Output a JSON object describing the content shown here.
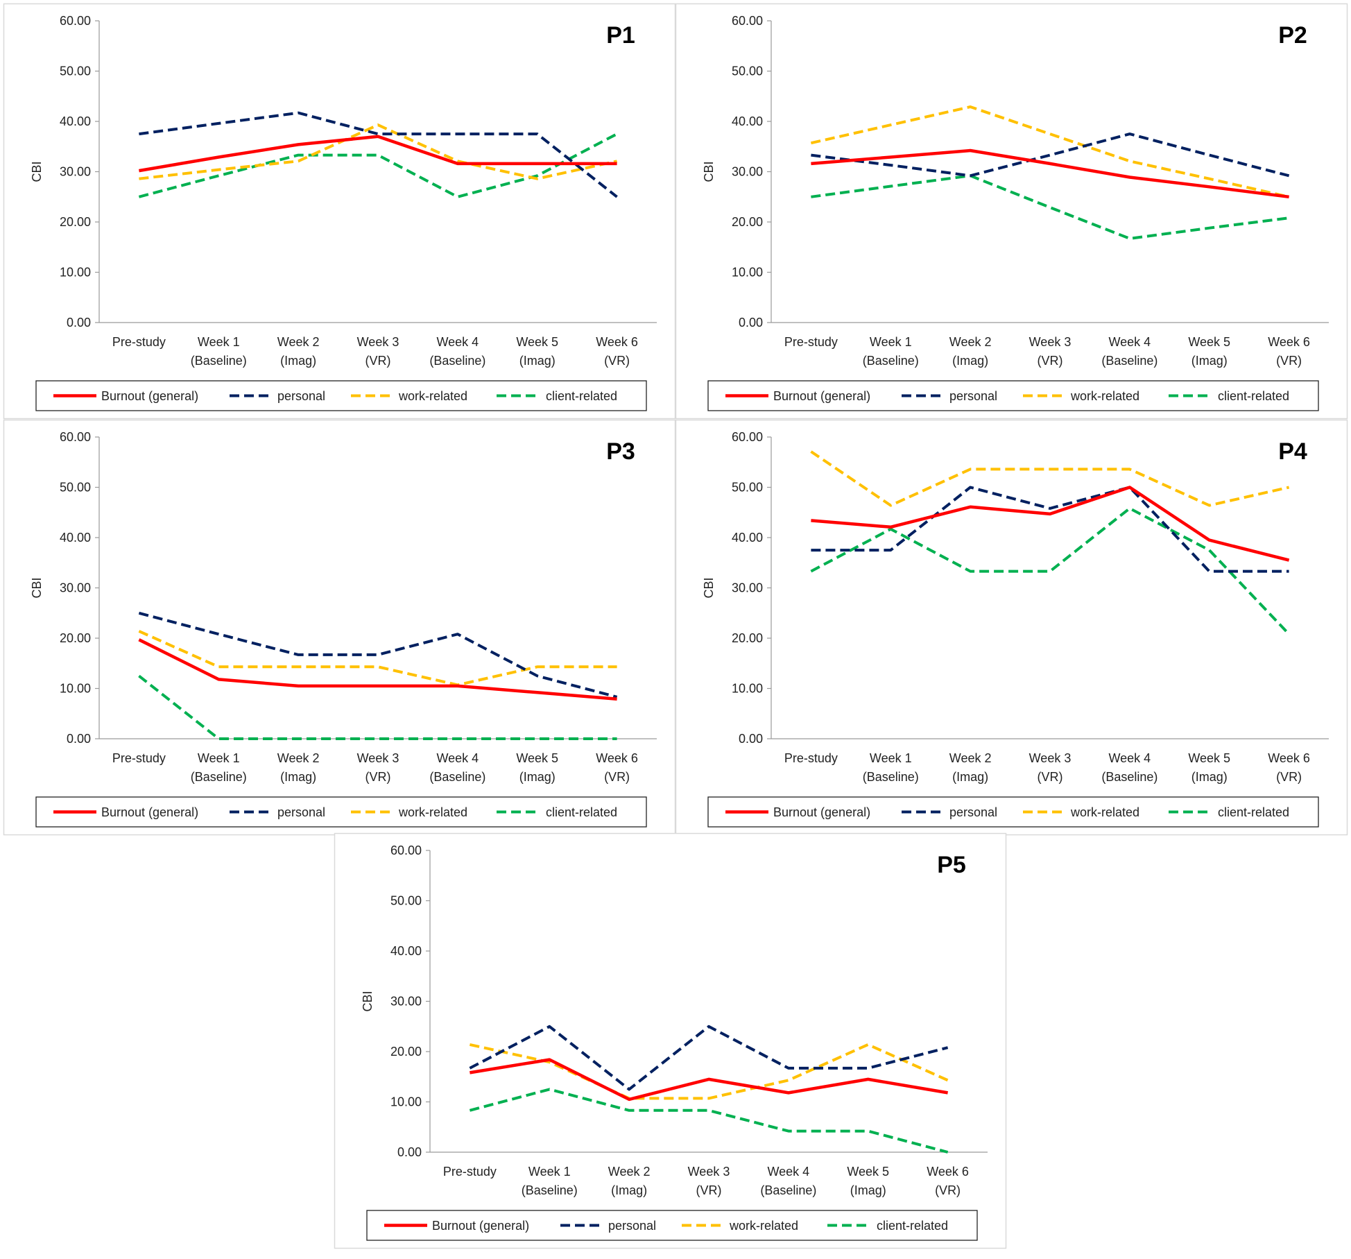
{
  "chart_data": [
    {
      "type": "line",
      "title": "P1",
      "y_label": "CBI",
      "categories": [
        "Pre-study",
        "Week 1 (Baseline)",
        "Week 2 (Imag)",
        "Week 3 (VR)",
        "Week 4 (Baseline)",
        "Week 5 (Imag)",
        "Week 6 (VR)"
      ],
      "ylim": [
        0,
        60
      ],
      "yticks": [
        {
          "value": 0,
          "label": "0.00"
        },
        {
          "value": 10,
          "label": "10.00"
        },
        {
          "value": 20,
          "label": "20.00"
        },
        {
          "value": 30,
          "label": "30.00"
        },
        {
          "value": 40,
          "label": "40.00"
        },
        {
          "value": 50,
          "label": "50.00"
        },
        {
          "value": 60,
          "label": "60.00"
        }
      ],
      "series": [
        {
          "name": "Burnout (general)",
          "color": "#ff0000",
          "values": [
            30.2,
            32.9,
            35.4,
            37.0,
            31.6,
            31.6,
            31.6
          ]
        },
        {
          "name": "personal",
          "color": "#002060",
          "dashed": true,
          "values": [
            37.5,
            39.6,
            41.7,
            37.5,
            37.5,
            37.5,
            25.0
          ]
        },
        {
          "name": "work-related",
          "color": "#ffc000",
          "dashed": true,
          "values": [
            28.6,
            30.4,
            32.1,
            39.3,
            32.1,
            28.6,
            32.1
          ]
        },
        {
          "name": "client-related",
          "color": "#00b050",
          "dashed": true,
          "values": [
            25.0,
            29.2,
            33.3,
            33.3,
            25.0,
            29.2,
            37.5
          ]
        }
      ]
    },
    {
      "type": "line",
      "title": "P2",
      "y_label": "CBI",
      "categories": [
        "Pre-study",
        "Week 1 (Baseline)",
        "Week 2 (Imag)",
        "Week 3 (VR)",
        "Week 4 (Baseline)",
        "Week 5 (Imag)",
        "Week 6 (VR)"
      ],
      "ylim": [
        0,
        60
      ],
      "yticks": [
        {
          "value": 0,
          "label": "0.00"
        },
        {
          "value": 10,
          "label": "10.00"
        },
        {
          "value": 20,
          "label": "20.00"
        },
        {
          "value": 30,
          "label": "30.00"
        },
        {
          "value": 40,
          "label": "40.00"
        },
        {
          "value": 50,
          "label": "50.00"
        },
        {
          "value": 60,
          "label": "60.00"
        }
      ],
      "series": [
        {
          "name": "Burnout (general)",
          "color": "#ff0000",
          "values": [
            31.6,
            32.9,
            34.2,
            31.6,
            28.9,
            27.0,
            25.0
          ]
        },
        {
          "name": "personal",
          "color": "#002060",
          "dashed": true,
          "values": [
            33.3,
            31.3,
            29.2,
            33.3,
            37.5,
            33.3,
            29.2
          ]
        },
        {
          "name": "work-related",
          "color": "#ffc000",
          "dashed": true,
          "values": [
            35.7,
            39.3,
            42.9,
            37.5,
            32.1,
            28.6,
            25.0
          ]
        },
        {
          "name": "client-related",
          "color": "#00b050",
          "dashed": true,
          "values": [
            25.0,
            27.1,
            29.2,
            22.9,
            16.7,
            18.8,
            20.8
          ]
        }
      ]
    },
    {
      "type": "line",
      "title": "P3",
      "y_label": "CBI",
      "categories": [
        "Pre-study",
        "Week 1 (Baseline)",
        "Week 2 (Imag)",
        "Week 3 (VR)",
        "Week 4 (Baseline)",
        "Week 5 (Imag)",
        "Week 6 (VR)"
      ],
      "ylim": [
        0,
        60
      ],
      "yticks": [
        {
          "value": 0,
          "label": "0.00"
        },
        {
          "value": 10,
          "label": "10.00"
        },
        {
          "value": 20,
          "label": "20.00"
        },
        {
          "value": 30,
          "label": "30.00"
        },
        {
          "value": 40,
          "label": "40.00"
        },
        {
          "value": 50,
          "label": "50.00"
        },
        {
          "value": 60,
          "label": "60.00"
        }
      ],
      "series": [
        {
          "name": "Burnout (general)",
          "color": "#ff0000",
          "values": [
            19.7,
            11.8,
            10.5,
            10.5,
            10.5,
            9.2,
            7.9
          ]
        },
        {
          "name": "personal",
          "color": "#002060",
          "dashed": true,
          "values": [
            25.0,
            20.8,
            16.7,
            16.7,
            20.8,
            12.5,
            8.3
          ]
        },
        {
          "name": "work-related",
          "color": "#ffc000",
          "dashed": true,
          "values": [
            21.4,
            14.3,
            14.3,
            14.3,
            10.7,
            14.3,
            14.3
          ]
        },
        {
          "name": "client-related",
          "color": "#00b050",
          "dashed": true,
          "values": [
            12.5,
            0,
            0,
            0,
            0,
            0,
            0
          ]
        }
      ]
    },
    {
      "type": "line",
      "title": "P4",
      "y_label": "CBI",
      "categories": [
        "Pre-study",
        "Week 1 (Baseline)",
        "Week 2 (Imag)",
        "Week 3 (VR)",
        "Week 4 (Baseline)",
        "Week 5 (Imag)",
        "Week 6 (VR)"
      ],
      "ylim": [
        0,
        60
      ],
      "yticks": [
        {
          "value": 0,
          "label": "0.00"
        },
        {
          "value": 10,
          "label": "10.00"
        },
        {
          "value": 20,
          "label": "20.00"
        },
        {
          "value": 30,
          "label": "30.00"
        },
        {
          "value": 40,
          "label": "40.00"
        },
        {
          "value": 50,
          "label": "50.00"
        },
        {
          "value": 60,
          "label": "60.00"
        }
      ],
      "series": [
        {
          "name": "Burnout (general)",
          "color": "#ff0000",
          "values": [
            43.4,
            42.1,
            46.1,
            44.7,
            50.0,
            39.5,
            35.5
          ]
        },
        {
          "name": "personal",
          "color": "#002060",
          "dashed": true,
          "values": [
            37.5,
            37.5,
            50.0,
            45.8,
            50.0,
            33.3,
            33.3
          ]
        },
        {
          "name": "work-related",
          "color": "#ffc000",
          "dashed": true,
          "values": [
            57.1,
            46.4,
            53.6,
            53.6,
            53.6,
            46.4,
            50.0
          ]
        },
        {
          "name": "client-related",
          "color": "#00b050",
          "dashed": true,
          "values": [
            33.3,
            41.7,
            33.3,
            33.3,
            45.8,
            37.5,
            20.8
          ]
        }
      ]
    },
    {
      "type": "line",
      "title": "P5",
      "y_label": "CBI",
      "categories": [
        "Pre-study",
        "Week 1 (Baseline)",
        "Week 2 (Imag)",
        "Week 3 (VR)",
        "Week 4 (Baseline)",
        "Week 5 (Imag)",
        "Week 6 (VR)"
      ],
      "ylim": [
        0,
        60
      ],
      "yticks": [
        {
          "value": 0,
          "label": "0.00"
        },
        {
          "value": 10,
          "label": "10.00"
        },
        {
          "value": 20,
          "label": "20.00"
        },
        {
          "value": 30,
          "label": "30.00"
        },
        {
          "value": 40,
          "label": "40.00"
        },
        {
          "value": 50,
          "label": "50.00"
        },
        {
          "value": 60,
          "label": "60.00"
        }
      ],
      "series": [
        {
          "name": "Burnout (general)",
          "color": "#ff0000",
          "values": [
            15.8,
            18.4,
            10.5,
            14.5,
            11.8,
            14.5,
            11.8
          ]
        },
        {
          "name": "personal",
          "color": "#002060",
          "dashed": true,
          "values": [
            16.7,
            25.0,
            12.5,
            25.0,
            16.7,
            16.7,
            20.8
          ]
        },
        {
          "name": "work-related",
          "color": "#ffc000",
          "dashed": true,
          "values": [
            21.4,
            17.9,
            10.7,
            10.7,
            14.3,
            21.4,
            14.3
          ]
        },
        {
          "name": "client-related",
          "color": "#00b050",
          "dashed": true,
          "values": [
            8.3,
            12.5,
            8.3,
            8.3,
            4.2,
            4.2,
            0
          ]
        }
      ]
    }
  ]
}
